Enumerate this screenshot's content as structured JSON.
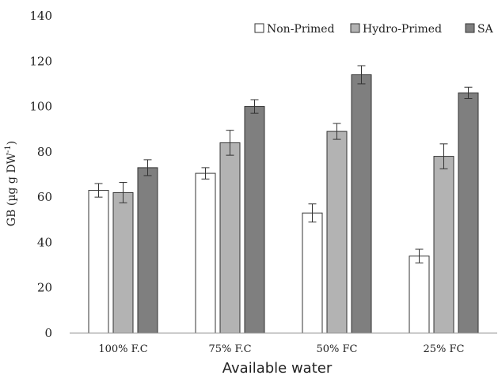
{
  "chart_data": {
    "type": "bar",
    "title": "",
    "xlabel": "Available water",
    "ylabel": "GB (µg g DW",
    "ylabel_superscript": "-1",
    "ylabel_close": ")",
    "ylim": [
      0,
      140
    ],
    "yticks": [
      0,
      20,
      40,
      60,
      80,
      100,
      120,
      140
    ],
    "grid": false,
    "legend_position": "top-right",
    "categories": [
      "100% F.C",
      "75% F.C",
      "50% FC",
      "25% FC"
    ],
    "series": [
      {
        "name": "Non-Primed",
        "color": "#ffffff",
        "values": [
          63,
          70.5,
          53,
          34
        ],
        "errors": [
          3,
          2.5,
          4,
          3
        ]
      },
      {
        "name": "Hydro-Primed",
        "color": "#b3b3b3",
        "values": [
          62,
          84,
          89,
          78
        ],
        "errors": [
          4.5,
          5.5,
          3.5,
          5.5
        ]
      },
      {
        "name": "SA",
        "color": "#7f7f7f",
        "values": [
          73,
          100,
          114,
          106
        ],
        "errors": [
          3.5,
          3,
          4,
          2.5
        ]
      }
    ]
  }
}
